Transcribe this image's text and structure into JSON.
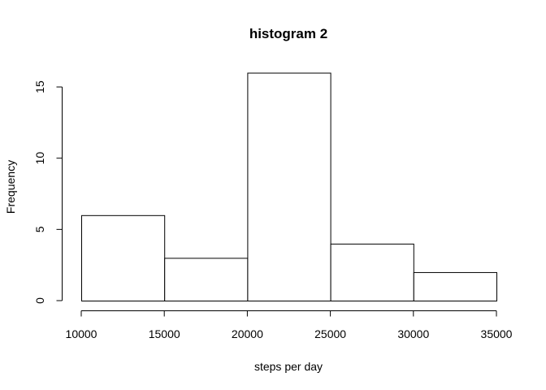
{
  "chart_data": {
    "type": "bar",
    "title": "histogram 2",
    "xlabel": "steps per day",
    "ylabel": "Frequency",
    "bins": [
      {
        "start": 10000,
        "end": 15000,
        "count": 6
      },
      {
        "start": 15000,
        "end": 20000,
        "count": 3
      },
      {
        "start": 20000,
        "end": 25000,
        "count": 16
      },
      {
        "start": 25000,
        "end": 30000,
        "count": 4
      },
      {
        "start": 30000,
        "end": 35000,
        "count": 2
      }
    ],
    "xlim": [
      10000,
      35000
    ],
    "ylim": [
      0,
      16
    ],
    "xticks": [
      "10000",
      "15000",
      "20000",
      "25000",
      "30000",
      "35000"
    ],
    "yticks": [
      "0",
      "5",
      "10",
      "15"
    ],
    "grid": false,
    "bar_fill": "#ffffff",
    "bar_stroke": "#000000"
  }
}
